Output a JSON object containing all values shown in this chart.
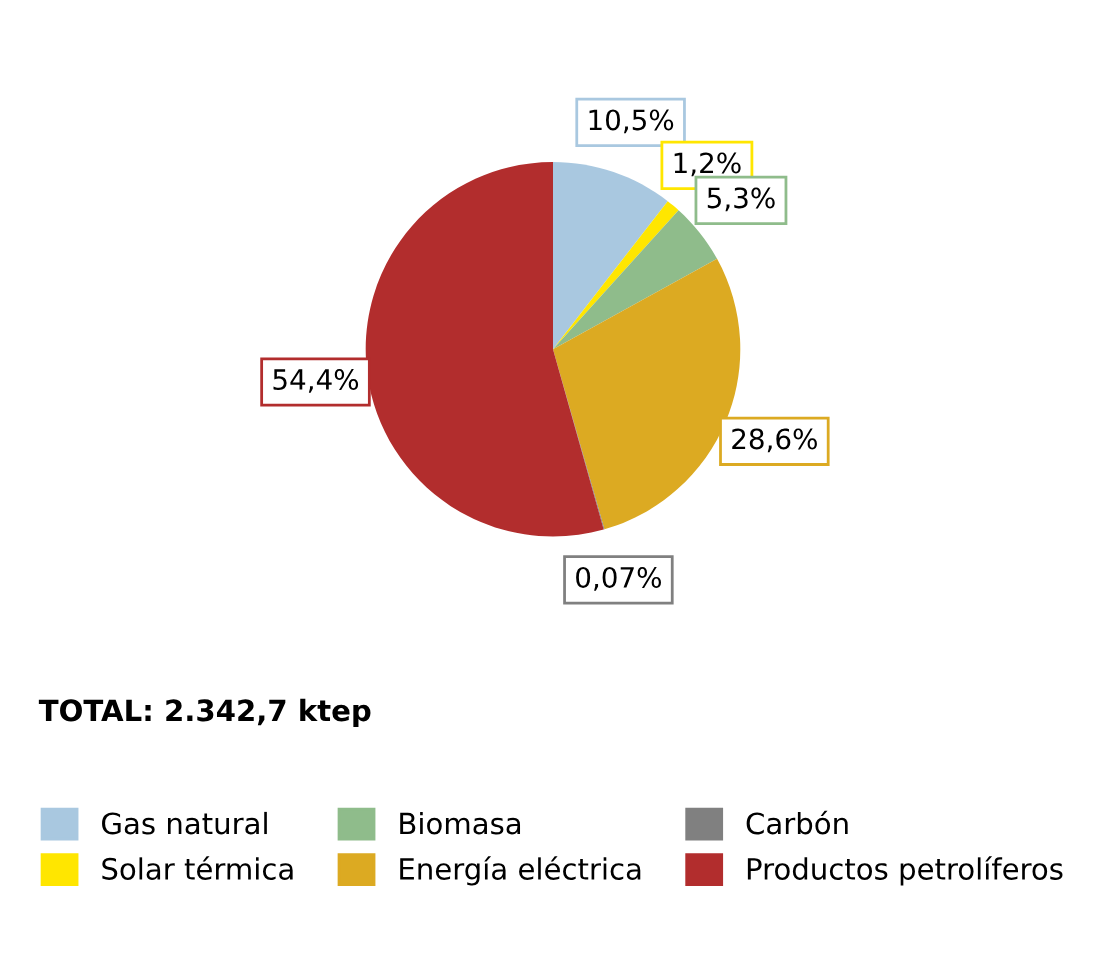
{
  "chart_data": {
    "type": "pie",
    "categories": [
      "Gas natural",
      "Solar térmica",
      "Biomasa",
      "Energía eléctrica",
      "Carbón",
      "Productos petrolíferos"
    ],
    "values": [
      10.5,
      1.2,
      5.3,
      28.6,
      0.07,
      54.4
    ],
    "colors": [
      "#a9c8e0",
      "#ffe600",
      "#8fbc8b",
      "#dcaa22",
      "#808080",
      "#b22d2d"
    ],
    "value_labels": [
      "10,5%",
      "1,2%",
      "5,3%",
      "28,6%",
      "0,07%",
      "54,4%"
    ],
    "annotations": [
      "TOTAL: 2.342,7 ktep"
    ],
    "legend": "bottom"
  }
}
